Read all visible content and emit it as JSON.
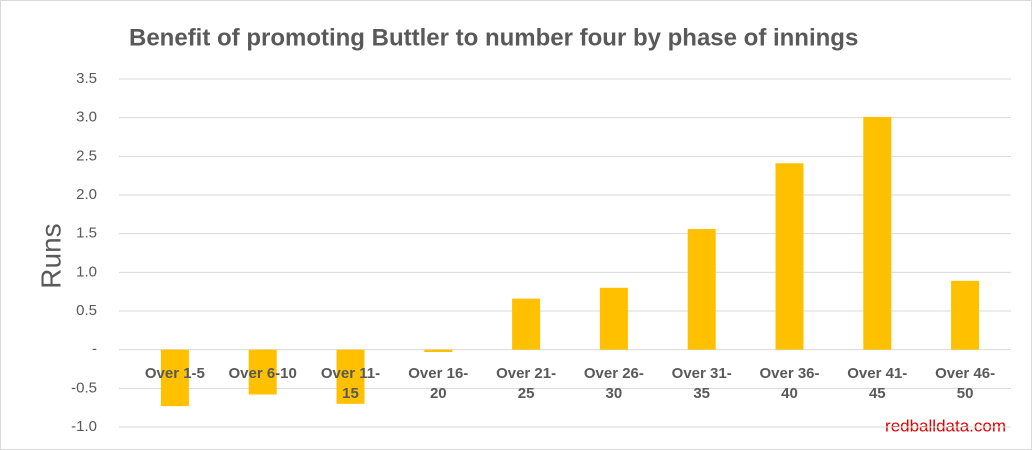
{
  "chart_data": {
    "type": "bar",
    "title": "Benefit of promoting Buttler to number four by phase of innings",
    "y_label": "Runs",
    "annotation": "redballdata.com",
    "categories": [
      "Over 1-5",
      "Over 6-10",
      "Over 11-15",
      "Over 16-20",
      "Over 21-25",
      "Over 26-30",
      "Over 31-35",
      "Over 36-40",
      "Over 41-45",
      "Over 46-50"
    ],
    "values": [
      -0.73,
      -0.58,
      -0.7,
      -0.03,
      0.66,
      0.8,
      1.56,
      2.41,
      3.01,
      0.89
    ],
    "color": "#ffc000",
    "ylim": [
      -1.0,
      3.5
    ],
    "yticks": [
      {
        "value": -1.0,
        "label": "-1.0"
      },
      -0.5,
      {
        "value": 0,
        "label": "-"
      },
      0.5,
      {
        "value": 1.0,
        "label": "1.0"
      },
      1.5,
      {
        "value": 2.0,
        "label": "2.0"
      },
      2.5,
      {
        "value": 3.0,
        "label": "3.0"
      },
      3.5
    ],
    "grid": true
  }
}
